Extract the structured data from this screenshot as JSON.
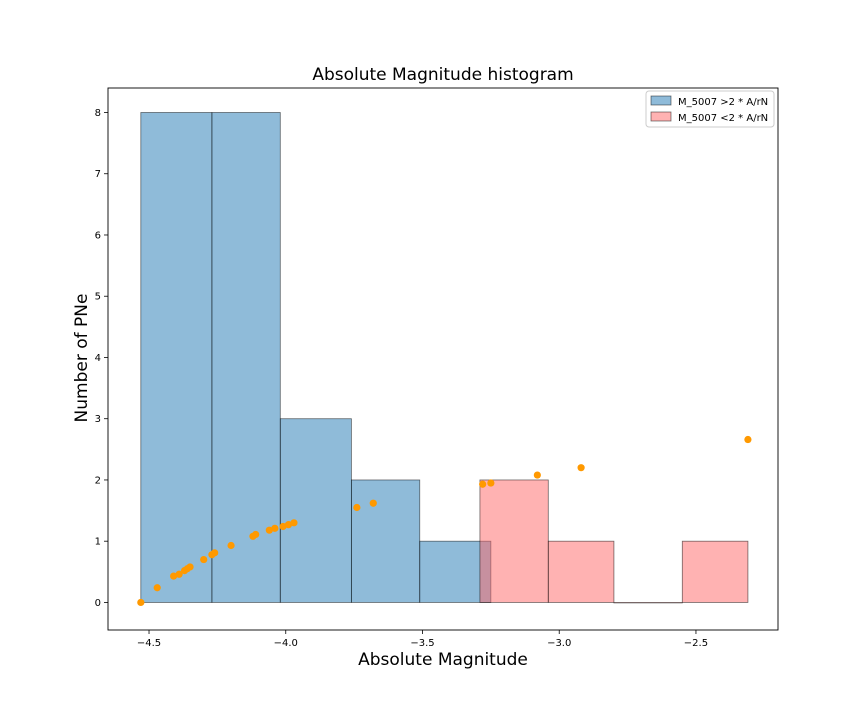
{
  "chart_data": {
    "type": "bar",
    "title": "Absolute Magnitude histogram",
    "xlabel": "Absolute Magnitude",
    "ylabel": "Number of PNe",
    "xlim": [
      -4.65,
      -2.2
    ],
    "ylim": [
      -0.45,
      8.4
    ],
    "xticks": [
      -4.5,
      -4.0,
      -3.5,
      -3.0,
      -2.5
    ],
    "xtick_labels": [
      "−4.5",
      "−4.0",
      "−3.5",
      "−3.0",
      "−2.5"
    ],
    "yticks": [
      0,
      1,
      2,
      3,
      4,
      5,
      6,
      7,
      8
    ],
    "ytick_labels": [
      "0",
      "1",
      "2",
      "3",
      "4",
      "5",
      "6",
      "7",
      "8"
    ],
    "legend_position": "top-right",
    "series": [
      {
        "name": "M_5007 >2 * A/rN",
        "color": "#1f77b4",
        "opacity": 0.5,
        "bins": [
          {
            "x0": -4.53,
            "x1": -4.27,
            "count": 8
          },
          {
            "x0": -4.27,
            "x1": -4.02,
            "count": 8
          },
          {
            "x0": -4.02,
            "x1": -3.76,
            "count": 3
          },
          {
            "x0": -3.76,
            "x1": -3.51,
            "count": 2
          },
          {
            "x0": -3.51,
            "x1": -3.25,
            "count": 1
          }
        ]
      },
      {
        "name": "M_5007 <2 * A/rN",
        "color": "#ff6666",
        "opacity": 0.5,
        "bins": [
          {
            "x0": -3.29,
            "x1": -3.04,
            "count": 2
          },
          {
            "x0": -3.04,
            "x1": -2.8,
            "count": 1
          },
          {
            "x0": -2.8,
            "x1": -2.55,
            "count": 0
          },
          {
            "x0": -2.55,
            "x1": -2.31,
            "count": 1
          }
        ]
      }
    ],
    "scatter": {
      "color": "#ff9900",
      "points": [
        [
          -4.53,
          0.0
        ],
        [
          -4.47,
          0.24
        ],
        [
          -4.41,
          0.43
        ],
        [
          -4.39,
          0.46
        ],
        [
          -4.37,
          0.52
        ],
        [
          -4.36,
          0.55
        ],
        [
          -4.35,
          0.58
        ],
        [
          -4.3,
          0.7
        ],
        [
          -4.27,
          0.78
        ],
        [
          -4.26,
          0.81
        ],
        [
          -4.2,
          0.93
        ],
        [
          -4.12,
          1.08
        ],
        [
          -4.11,
          1.11
        ],
        [
          -4.06,
          1.18
        ],
        [
          -4.04,
          1.21
        ],
        [
          -4.01,
          1.24
        ],
        [
          -3.99,
          1.27
        ],
        [
          -3.97,
          1.3
        ],
        [
          -3.74,
          1.55
        ],
        [
          -3.68,
          1.62
        ],
        [
          -3.28,
          1.93
        ],
        [
          -3.25,
          1.95
        ],
        [
          -3.08,
          2.08
        ],
        [
          -2.92,
          2.2
        ],
        [
          -2.31,
          2.66
        ]
      ]
    }
  }
}
